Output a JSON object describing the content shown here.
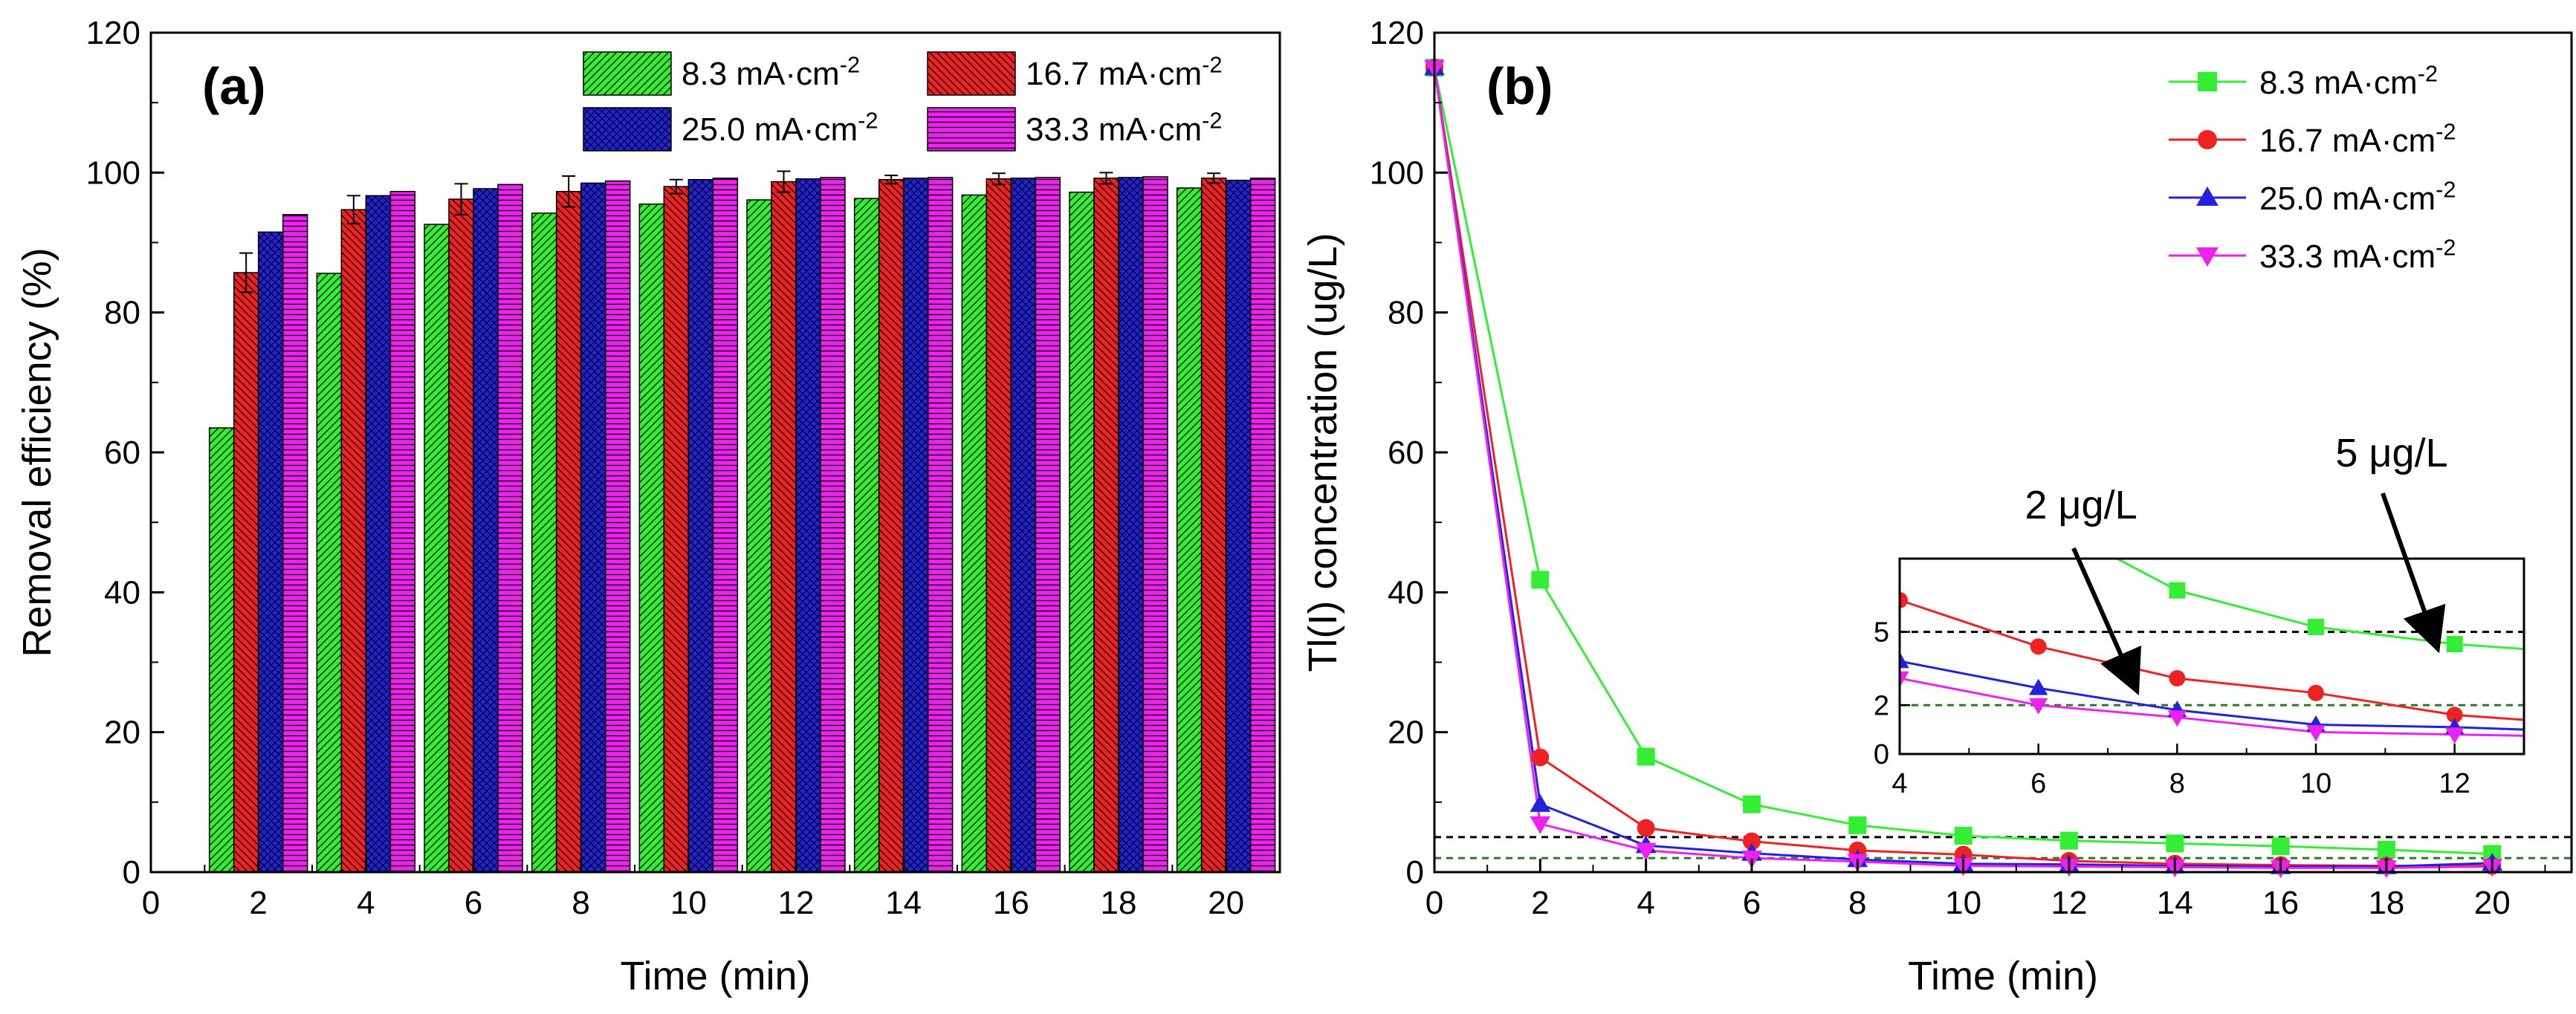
{
  "chart_data": [
    {
      "type": "bar",
      "panel_label": "(a)",
      "xlabel": "Time (min)",
      "ylabel": "Removal efficiency (%)",
      "xlim": [
        0,
        21
      ],
      "ylim": [
        0,
        120
      ],
      "xticks": [
        "0",
        "2",
        "4",
        "6",
        "8",
        "10",
        "12",
        "14",
        "16",
        "18",
        "20"
      ],
      "yticks": [
        "0",
        "20",
        "40",
        "60",
        "80",
        "100",
        "120"
      ],
      "categories": [
        2,
        4,
        6,
        8,
        10,
        12,
        14,
        16,
        18,
        20
      ],
      "legend_position": "top-right",
      "series": [
        {
          "name": "8.3 mA·cm",
          "superscript": "-2",
          "color": "#33ee33",
          "hatch": "diag-right",
          "values": [
            63.5,
            85.6,
            92.6,
            94.2,
            95.5,
            96.1,
            96.3,
            96.8,
            97.2,
            97.8
          ],
          "errors": [
            0,
            0,
            0,
            0,
            0,
            0,
            0,
            0,
            0,
            0
          ]
        },
        {
          "name": "16.7 mA·cm",
          "superscript": "-2",
          "color": "#ee2222",
          "hatch": "diag-left",
          "values": [
            85.7,
            94.7,
            96.2,
            97.3,
            98.0,
            98.7,
            99.0,
            99.1,
            99.2,
            99.2
          ],
          "errors": [
            2.8,
            2.0,
            2.2,
            2.2,
            1.0,
            1.5,
            0.6,
            0.8,
            0.8,
            0.7
          ]
        },
        {
          "name": "25.0 mA·cm",
          "superscript": "-2",
          "color": "#2222dd",
          "hatch": "cross",
          "values": [
            91.5,
            96.7,
            97.7,
            98.5,
            99.0,
            99.1,
            99.2,
            99.2,
            99.3,
            98.9
          ],
          "errors": [
            0,
            0,
            0,
            0,
            0,
            0,
            0,
            0,
            0,
            0
          ]
        },
        {
          "name": "33.3 mA·cm",
          "superscript": "-2",
          "color": "#ee22ee",
          "hatch": "horizontal",
          "values": [
            94.0,
            97.3,
            98.3,
            98.8,
            99.2,
            99.3,
            99.3,
            99.3,
            99.4,
            99.2
          ],
          "errors": [
            0,
            0,
            0,
            0,
            0,
            0,
            0,
            0,
            0,
            0
          ]
        }
      ]
    },
    {
      "type": "line",
      "panel_label": "(b)",
      "xlabel": "Time (min)",
      "ylabel": "Tl(I) concentration (ug/L)",
      "xlim": [
        0,
        21.5
      ],
      "ylim": [
        0,
        120
      ],
      "xticks": [
        "0",
        "2",
        "4",
        "6",
        "8",
        "10",
        "12",
        "14",
        "16",
        "18",
        "20"
      ],
      "yticks": [
        "0",
        "20",
        "40",
        "60",
        "80",
        "100",
        "120"
      ],
      "x": [
        0,
        2,
        4,
        6,
        8,
        10,
        12,
        14,
        16,
        18,
        20
      ],
      "legend_position": "top-right",
      "reference_lines": [
        {
          "value": 5,
          "color": "#000000",
          "label": "5 μg/L"
        },
        {
          "value": 2,
          "color": "#2a7a2a",
          "label": "2 μg/L"
        }
      ],
      "series": [
        {
          "name": "8.3 mA·cm",
          "superscript": "-2",
          "color": "#33ee33",
          "marker": "square",
          "values": [
            115,
            41.8,
            16.5,
            9.7,
            6.7,
            5.2,
            4.5,
            4.1,
            3.7,
            3.2,
            2.6
          ]
        },
        {
          "name": "16.7 mA·cm",
          "superscript": "-2",
          "color": "#ee2222",
          "marker": "circle",
          "values": [
            115,
            16.4,
            6.3,
            4.4,
            3.1,
            2.5,
            1.6,
            1.2,
            1.0,
            0.9,
            0.9
          ]
        },
        {
          "name": "25.0 mA·cm",
          "superscript": "-2",
          "color": "#2222dd",
          "marker": "triangle-up",
          "values": [
            115,
            9.7,
            3.8,
            2.7,
            1.8,
            1.2,
            1.1,
            0.9,
            0.8,
            0.8,
            1.3
          ]
        },
        {
          "name": "33.3 mA·cm",
          "superscript": "-2",
          "color": "#ee22ee",
          "marker": "triangle-down",
          "values": [
            115,
            6.9,
            3.1,
            2.0,
            1.5,
            0.9,
            0.8,
            0.7,
            0.6,
            0.6,
            0.8
          ]
        }
      ],
      "inset": {
        "xlim": [
          4,
          13
        ],
        "ylim": [
          0,
          8
        ],
        "xticks": [
          "4",
          "6",
          "8",
          "10",
          "12"
        ],
        "yticks": [
          "0",
          "2",
          "5"
        ]
      }
    }
  ]
}
